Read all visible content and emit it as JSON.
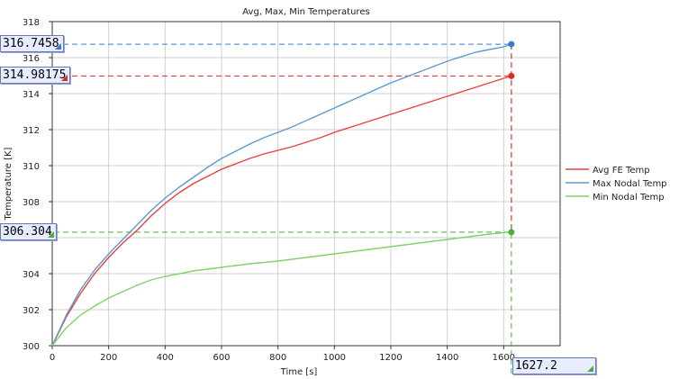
{
  "chart_data": {
    "type": "line",
    "title": "Avg, Max, Min Temperatures",
    "xlabel": "Time [s]",
    "ylabel": "Temperature [K]",
    "xlim": [
      0,
      1800
    ],
    "ylim": [
      300,
      318
    ],
    "xticks": [
      0,
      200,
      400,
      600,
      800,
      1000,
      1200,
      1400,
      1600
    ],
    "yticks": [
      300,
      302,
      304,
      306,
      308,
      310,
      312,
      314,
      316,
      318
    ],
    "grid": true,
    "legend_position": "right",
    "series": [
      {
        "name": "Avg FE Temp",
        "color": "#e8413c",
        "points": [
          [
            0,
            300
          ],
          [
            50,
            301.6
          ],
          [
            100,
            302.9
          ],
          [
            150,
            304.0
          ],
          [
            200,
            304.9
          ],
          [
            250,
            305.7
          ],
          [
            300,
            306.4
          ],
          [
            350,
            307.2
          ],
          [
            400,
            307.9
          ],
          [
            450,
            308.5
          ],
          [
            500,
            309.0
          ],
          [
            550,
            309.4
          ],
          [
            600,
            309.8
          ],
          [
            650,
            310.1
          ],
          [
            700,
            310.4
          ],
          [
            750,
            310.65
          ],
          [
            800,
            310.85
          ],
          [
            850,
            311.05
          ],
          [
            900,
            311.3
          ],
          [
            950,
            311.55
          ],
          [
            1000,
            311.85
          ],
          [
            1050,
            312.1
          ],
          [
            1100,
            312.35
          ],
          [
            1150,
            312.6
          ],
          [
            1200,
            312.85
          ],
          [
            1250,
            313.1
          ],
          [
            1300,
            313.35
          ],
          [
            1350,
            313.6
          ],
          [
            1400,
            313.85
          ],
          [
            1450,
            314.1
          ],
          [
            1500,
            314.35
          ],
          [
            1550,
            314.6
          ],
          [
            1600,
            314.85
          ],
          [
            1627.2,
            314.98175
          ]
        ]
      },
      {
        "name": "Max Nodal Temp",
        "color": "#5b9bd1",
        "points": [
          [
            0,
            300
          ],
          [
            50,
            301.7
          ],
          [
            100,
            303.1
          ],
          [
            150,
            304.2
          ],
          [
            200,
            305.1
          ],
          [
            250,
            305.9
          ],
          [
            300,
            306.7
          ],
          [
            350,
            307.5
          ],
          [
            400,
            308.2
          ],
          [
            450,
            308.8
          ],
          [
            500,
            309.35
          ],
          [
            550,
            309.9
          ],
          [
            600,
            310.4
          ],
          [
            650,
            310.8
          ],
          [
            700,
            311.2
          ],
          [
            750,
            311.55
          ],
          [
            800,
            311.85
          ],
          [
            850,
            312.15
          ],
          [
            900,
            312.5
          ],
          [
            950,
            312.85
          ],
          [
            1000,
            313.2
          ],
          [
            1050,
            313.55
          ],
          [
            1100,
            313.9
          ],
          [
            1150,
            314.25
          ],
          [
            1200,
            314.6
          ],
          [
            1250,
            314.9
          ],
          [
            1300,
            315.2
          ],
          [
            1350,
            315.5
          ],
          [
            1400,
            315.8
          ],
          [
            1450,
            316.05
          ],
          [
            1500,
            316.3
          ],
          [
            1550,
            316.45
          ],
          [
            1600,
            316.6
          ],
          [
            1627.2,
            316.7458
          ]
        ]
      },
      {
        "name": "Min Nodal Temp",
        "color": "#7dd36a",
        "points": [
          [
            0,
            300
          ],
          [
            50,
            301.0
          ],
          [
            100,
            301.7
          ],
          [
            150,
            302.2
          ],
          [
            200,
            302.65
          ],
          [
            250,
            303.0
          ],
          [
            300,
            303.35
          ],
          [
            350,
            303.65
          ],
          [
            400,
            303.85
          ],
          [
            450,
            304.0
          ],
          [
            500,
            304.15
          ],
          [
            550,
            304.25
          ],
          [
            600,
            304.35
          ],
          [
            650,
            304.45
          ],
          [
            700,
            304.55
          ],
          [
            750,
            304.62
          ],
          [
            800,
            304.7
          ],
          [
            850,
            304.8
          ],
          [
            900,
            304.9
          ],
          [
            950,
            305.0
          ],
          [
            1000,
            305.1
          ],
          [
            1050,
            305.2
          ],
          [
            1100,
            305.3
          ],
          [
            1150,
            305.4
          ],
          [
            1200,
            305.5
          ],
          [
            1250,
            305.6
          ],
          [
            1300,
            305.7
          ],
          [
            1350,
            305.8
          ],
          [
            1400,
            305.9
          ],
          [
            1450,
            306.0
          ],
          [
            1500,
            306.1
          ],
          [
            1550,
            306.2
          ],
          [
            1600,
            306.28
          ],
          [
            1627.2,
            306.304
          ]
        ]
      }
    ],
    "cursor": {
      "x": 1627.2,
      "x_label": "1627.2",
      "readouts": [
        {
          "series": "Max Nodal Temp",
          "value": 316.7458,
          "label": "316.7458",
          "color": "#3a7cc8"
        },
        {
          "series": "Avg FE Temp",
          "value": 314.98175,
          "label": "314.98175",
          "color": "#d92b26"
        },
        {
          "series": "Min Nodal Temp",
          "value": 306.304,
          "label": "306.304",
          "color": "#4cae3a"
        }
      ]
    }
  }
}
